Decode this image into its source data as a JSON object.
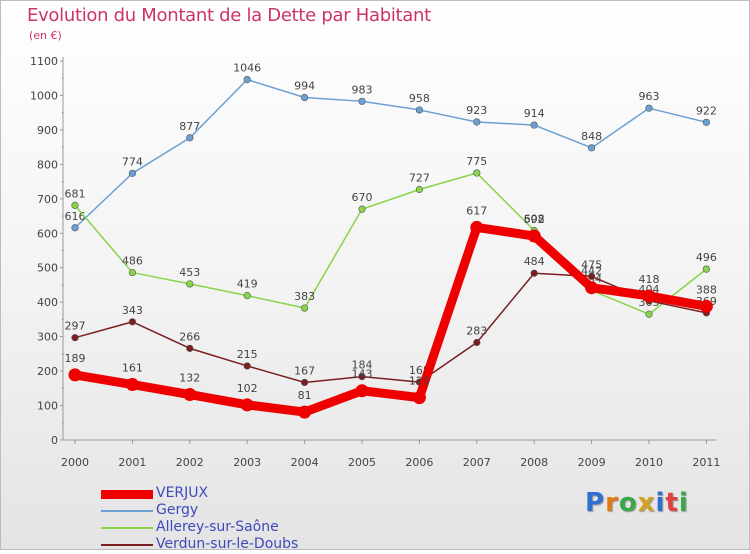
{
  "header": {
    "title": "Evolution du Montant de la Dette par Habitant",
    "unit": "(en €)"
  },
  "chart_data": {
    "type": "line",
    "title": "Evolution du Montant de la Dette par Habitant",
    "subtitle": "(en €)",
    "xlabel": "",
    "ylabel": "",
    "x": [
      "2000",
      "2001",
      "2002",
      "2003",
      "2004",
      "2005",
      "2006",
      "2007",
      "2008",
      "2009",
      "2010",
      "2011"
    ],
    "ylim": [
      0,
      1100
    ],
    "yticks": [
      0,
      100,
      200,
      300,
      400,
      500,
      600,
      700,
      800,
      900,
      1000,
      1100
    ],
    "grid": false,
    "legend_position": "bottom-left",
    "series": [
      {
        "name": "VERJUX",
        "color": "#ee0000",
        "values": [
          189,
          161,
          132,
          102,
          81,
          143,
          123,
          617,
          592,
          442,
          418,
          388
        ]
      },
      {
        "name": "Gergy",
        "color": "#6aa0d4",
        "values": [
          616,
          774,
          877,
          1046,
          994,
          983,
          958,
          923,
          914,
          848,
          963,
          922
        ]
      },
      {
        "name": "Allerey-sur-Saône",
        "color": "#88d44a",
        "values": [
          681,
          486,
          453,
          419,
          383,
          670,
          727,
          775,
          608,
          434,
          365,
          496
        ]
      },
      {
        "name": "Verdun-sur-le-Doubs",
        "color": "#7a1f1f",
        "values": [
          297,
          343,
          266,
          215,
          167,
          184,
          168,
          283,
          484,
          475,
          404,
          369
        ]
      }
    ]
  },
  "legend": {
    "items": [
      {
        "label": "VERJUX"
      },
      {
        "label": "Gergy"
      },
      {
        "label": "Allerey-sur-Saône"
      },
      {
        "label": "Verdun-sur-le-Doubs"
      }
    ]
  },
  "logo": {
    "letters": [
      "P",
      "r",
      "o",
      "x",
      "i",
      "t",
      "i"
    ],
    "colors": [
      "#2f6fd0",
      "#e07a10",
      "#3aa84a",
      "#d0a020",
      "#2f6fd0",
      "#e04040",
      "#3aa84a"
    ]
  }
}
